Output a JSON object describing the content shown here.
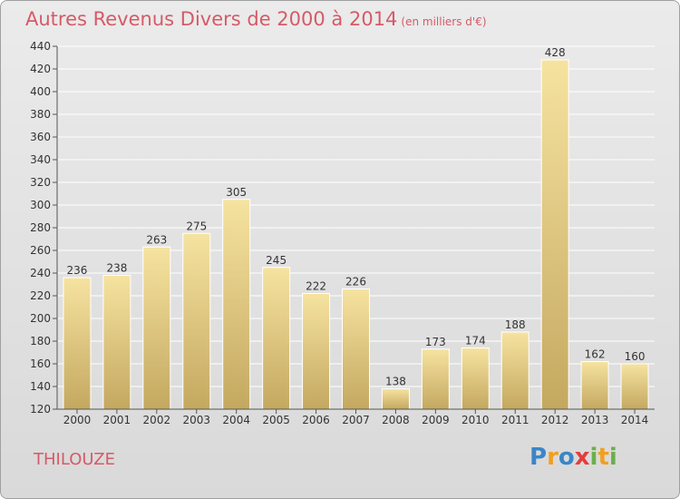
{
  "header": {
    "title": "Autres Revenus Divers de 2000 à 2014",
    "subtitle": "(en milliers d'€)"
  },
  "footer": {
    "place": "THILOUZE",
    "logo": "Proxiti"
  },
  "colors": {
    "title": "#d55a68",
    "bar_top": "#f6e3a0",
    "bar_bottom": "#c4a860",
    "background": "#e2e2e2"
  },
  "chart_data": {
    "type": "bar",
    "categories": [
      "2000",
      "2001",
      "2002",
      "2003",
      "2004",
      "2005",
      "2006",
      "2007",
      "2008",
      "2009",
      "2010",
      "2011",
      "2012",
      "2013",
      "2014"
    ],
    "values": [
      236,
      238,
      263,
      275,
      305,
      245,
      222,
      226,
      138,
      173,
      174,
      188,
      428,
      162,
      160
    ],
    "title": "Autres Revenus Divers de 2000 à 2014",
    "subtitle": "(en milliers d'€)",
    "ylim": [
      120,
      440
    ],
    "yticks": [
      120,
      140,
      160,
      180,
      200,
      220,
      240,
      260,
      280,
      300,
      320,
      340,
      360,
      380,
      400,
      420,
      440
    ],
    "grid": true
  }
}
